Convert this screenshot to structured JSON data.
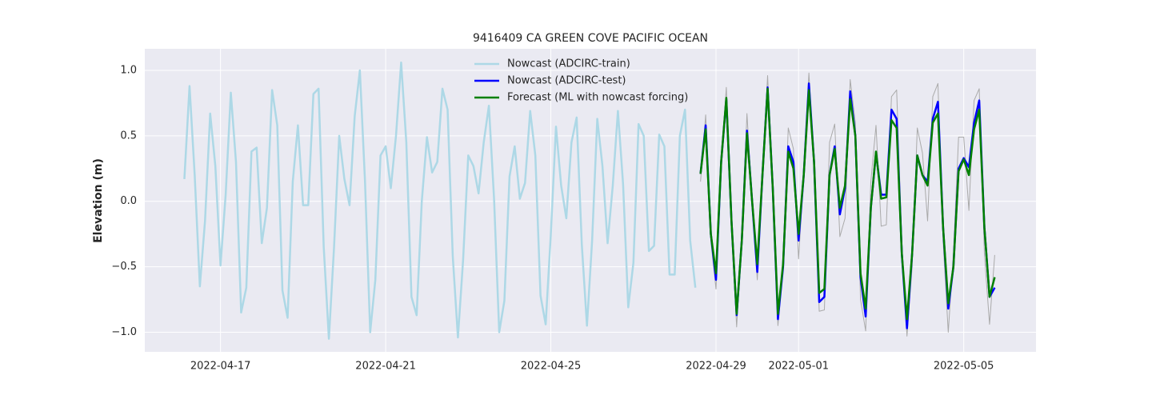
{
  "chart_data": {
    "type": "line",
    "title": "9416409 CA GREEN COVE PACIFIC OCEAN",
    "y_label": "Elevation (m)",
    "grid": true,
    "legend": "upper center",
    "background": "#eaeaf2",
    "xlim": [
      "2022-04-15 04:00",
      "2022-05-06 18:00"
    ],
    "xticks": [
      "2022-04-17",
      "2022-04-21",
      "2022-04-25",
      "2022-04-29",
      "2022-05-01",
      "2022-05-05"
    ],
    "ylim": [
      -1.15,
      1.165
    ],
    "yticks": [
      {
        "value": -1,
        "label": "−1.0"
      },
      {
        "value": -0.5,
        "label": "−0.5"
      },
      {
        "value": 0,
        "label": "0.0"
      },
      0.5,
      {
        "value": 1,
        "label": "1.0"
      }
    ],
    "x": [
      "2022-04-16 03:00",
      "2022-04-16 06:00",
      "2022-04-16 09:00",
      "2022-04-16 12:00",
      "2022-04-16 15:00",
      "2022-04-16 18:00",
      "2022-04-16 21:00",
      "2022-04-17 00:00",
      "2022-04-17 03:00",
      "2022-04-17 06:00",
      "2022-04-17 09:00",
      "2022-04-17 12:00",
      "2022-04-17 15:00",
      "2022-04-17 18:00",
      "2022-04-17 21:00",
      "2022-04-18 00:00",
      "2022-04-18 03:00",
      "2022-04-18 06:00",
      "2022-04-18 09:00",
      "2022-04-18 12:00",
      "2022-04-18 15:00",
      "2022-04-18 18:00",
      "2022-04-18 21:00",
      "2022-04-19 00:00",
      "2022-04-19 03:00",
      "2022-04-19 06:00",
      "2022-04-19 09:00",
      "2022-04-19 12:00",
      "2022-04-19 15:00",
      "2022-04-19 18:00",
      "2022-04-19 21:00",
      "2022-04-20 00:00",
      "2022-04-20 03:00",
      "2022-04-20 06:00",
      "2022-04-20 09:00",
      "2022-04-20 12:00",
      "2022-04-20 15:00",
      "2022-04-20 18:00",
      "2022-04-20 21:00",
      "2022-04-21 00:00",
      "2022-04-21 03:00",
      "2022-04-21 06:00",
      "2022-04-21 09:00",
      "2022-04-21 12:00",
      "2022-04-21 15:00",
      "2022-04-21 18:00",
      "2022-04-21 21:00",
      "2022-04-22 00:00",
      "2022-04-22 03:00",
      "2022-04-22 06:00",
      "2022-04-22 09:00",
      "2022-04-22 12:00",
      "2022-04-22 15:00",
      "2022-04-22 18:00",
      "2022-04-22 21:00",
      "2022-04-23 00:00",
      "2022-04-23 03:00",
      "2022-04-23 06:00",
      "2022-04-23 09:00",
      "2022-04-23 12:00",
      "2022-04-23 15:00",
      "2022-04-23 18:00",
      "2022-04-23 21:00",
      "2022-04-24 00:00",
      "2022-04-24 03:00",
      "2022-04-24 06:00",
      "2022-04-24 09:00",
      "2022-04-24 12:00",
      "2022-04-24 15:00",
      "2022-04-24 18:00",
      "2022-04-24 21:00",
      "2022-04-25 00:00",
      "2022-04-25 03:00",
      "2022-04-25 06:00",
      "2022-04-25 09:00",
      "2022-04-25 12:00",
      "2022-04-25 15:00",
      "2022-04-25 18:00",
      "2022-04-25 21:00",
      "2022-04-26 00:00",
      "2022-04-26 03:00",
      "2022-04-26 06:00",
      "2022-04-26 09:00",
      "2022-04-26 12:00",
      "2022-04-26 15:00",
      "2022-04-26 18:00",
      "2022-04-26 21:00",
      "2022-04-27 00:00",
      "2022-04-27 03:00",
      "2022-04-27 06:00",
      "2022-04-27 09:00",
      "2022-04-27 12:00",
      "2022-04-27 15:00",
      "2022-04-27 18:00",
      "2022-04-27 21:00",
      "2022-04-28 00:00",
      "2022-04-28 03:00",
      "2022-04-28 06:00",
      "2022-04-28 09:00",
      "2022-04-28 12:00",
      "2022-04-28 15:00",
      "2022-04-28 18:00",
      "2022-04-28 21:00",
      "2022-04-29 00:00",
      "2022-04-29 03:00",
      "2022-04-29 06:00",
      "2022-04-29 09:00",
      "2022-04-29 12:00",
      "2022-04-29 15:00",
      "2022-04-29 18:00",
      "2022-04-29 21:00",
      "2022-04-30 00:00",
      "2022-04-30 03:00",
      "2022-04-30 06:00",
      "2022-04-30 09:00",
      "2022-04-30 12:00",
      "2022-04-30 15:00",
      "2022-04-30 18:00",
      "2022-04-30 21:00",
      "2022-05-01 00:00",
      "2022-05-01 03:00",
      "2022-05-01 06:00",
      "2022-05-01 09:00",
      "2022-05-01 12:00",
      "2022-05-01 15:00",
      "2022-05-01 18:00",
      "2022-05-01 21:00",
      "2022-05-02 00:00",
      "2022-05-02 03:00",
      "2022-05-02 06:00",
      "2022-05-02 09:00",
      "2022-05-02 12:00",
      "2022-05-02 15:00",
      "2022-05-02 18:00",
      "2022-05-02 21:00",
      "2022-05-03 00:00",
      "2022-05-03 03:00",
      "2022-05-03 06:00",
      "2022-05-03 09:00",
      "2022-05-03 12:00",
      "2022-05-03 15:00",
      "2022-05-03 18:00",
      "2022-05-03 21:00",
      "2022-05-04 00:00",
      "2022-05-04 03:00",
      "2022-05-04 06:00",
      "2022-05-04 09:00",
      "2022-05-04 12:00",
      "2022-05-04 15:00",
      "2022-05-04 18:00",
      "2022-05-04 21:00",
      "2022-05-05 00:00",
      "2022-05-05 03:00",
      "2022-05-05 06:00",
      "2022-05-05 09:00",
      "2022-05-05 12:00",
      "2022-05-05 15:00",
      "2022-05-05 18:00"
    ],
    "series": [
      {
        "name": "Nowcast (ADCIRC-train)",
        "color": "#add8e6",
        "width": 2.5,
        "values": [
          0.17,
          0.88,
          0.2,
          -0.65,
          -0.15,
          0.67,
          0.27,
          -0.49,
          0.05,
          0.83,
          0.3,
          -0.85,
          -0.66,
          0.38,
          0.41,
          -0.32,
          -0.05,
          0.85,
          0.58,
          -0.68,
          -0.89,
          0.15,
          0.58,
          -0.03,
          -0.03,
          0.82,
          0.86,
          -0.35,
          -1.05,
          -0.35,
          0.5,
          0.17,
          -0.03,
          0.65,
          1.0,
          0.15,
          -1.0,
          -0.6,
          0.35,
          0.42,
          0.1,
          0.5,
          1.06,
          0.45,
          -0.73,
          -0.87,
          0.0,
          0.49,
          0.22,
          0.3,
          0.86,
          0.7,
          -0.42,
          -1.04,
          -0.45,
          0.35,
          0.27,
          0.06,
          0.45,
          0.73,
          0.02,
          -1.0,
          -0.76,
          0.19,
          0.42,
          0.02,
          0.14,
          0.69,
          0.35,
          -0.72,
          -0.94,
          -0.25,
          0.57,
          0.12,
          -0.13,
          0.45,
          0.64,
          -0.33,
          -0.95,
          -0.3,
          0.63,
          0.27,
          -0.32,
          0.12,
          0.69,
          0.13,
          -0.81,
          -0.47,
          0.59,
          0.5,
          -0.38,
          -0.34,
          0.51,
          0.42,
          -0.56,
          -0.56,
          0.5,
          0.7,
          -0.3,
          -0.66,
          null,
          null,
          null,
          null,
          null,
          null,
          null,
          null,
          null,
          null,
          null,
          null,
          null,
          null,
          null,
          null,
          null,
          null,
          null,
          null,
          null,
          null,
          null,
          null,
          null,
          null,
          null,
          null,
          null,
          null,
          null,
          null,
          null,
          null,
          null,
          null,
          null,
          null,
          null,
          null,
          null,
          null,
          null,
          null,
          null,
          null,
          null,
          null,
          null,
          null,
          null,
          null,
          null,
          null,
          null,
          null,
          null,
          null
        ]
      },
      {
        "color": "#aaaaaa",
        "width": 1,
        "values": [
          null,
          null,
          null,
          null,
          null,
          null,
          null,
          null,
          null,
          null,
          null,
          null,
          null,
          null,
          null,
          null,
          null,
          null,
          null,
          null,
          null,
          null,
          null,
          null,
          null,
          null,
          null,
          null,
          null,
          null,
          null,
          null,
          null,
          null,
          null,
          null,
          null,
          null,
          null,
          null,
          null,
          null,
          null,
          null,
          null,
          null,
          null,
          null,
          null,
          null,
          null,
          null,
          null,
          null,
          null,
          null,
          null,
          null,
          null,
          null,
          null,
          null,
          null,
          null,
          null,
          null,
          null,
          null,
          null,
          null,
          null,
          null,
          null,
          null,
          null,
          null,
          null,
          null,
          null,
          null,
          null,
          null,
          null,
          null,
          null,
          null,
          null,
          null,
          null,
          null,
          null,
          null,
          null,
          null,
          null,
          null,
          null,
          null,
          null,
          null,
          0.15,
          0.66,
          -0.3,
          -0.67,
          0.3,
          0.87,
          -0.2,
          -0.96,
          -0.3,
          0.67,
          0.0,
          -0.6,
          0.2,
          0.96,
          0.1,
          -0.95,
          -0.5,
          0.56,
          0.4,
          -0.44,
          0.2,
          0.98,
          0.3,
          -0.84,
          -0.83,
          0.45,
          0.59,
          -0.27,
          -0.13,
          0.93,
          0.6,
          -0.75,
          -0.99,
          0.15,
          0.58,
          -0.19,
          -0.18,
          0.8,
          0.85,
          -0.3,
          -1.03,
          -0.5,
          0.56,
          0.37,
          -0.15,
          0.8,
          0.9,
          -0.3,
          -1.0,
          -0.4,
          0.49,
          0.49,
          -0.07,
          0.77,
          0.86,
          -0.4,
          -0.94,
          -0.41
        ]
      },
      {
        "name": "Nowcast (ADCIRC-test)",
        "color": "#0000ff",
        "width": 2.5,
        "values": [
          null,
          null,
          null,
          null,
          null,
          null,
          null,
          null,
          null,
          null,
          null,
          null,
          null,
          null,
          null,
          null,
          null,
          null,
          null,
          null,
          null,
          null,
          null,
          null,
          null,
          null,
          null,
          null,
          null,
          null,
          null,
          null,
          null,
          null,
          null,
          null,
          null,
          null,
          null,
          null,
          null,
          null,
          null,
          null,
          null,
          null,
          null,
          null,
          null,
          null,
          null,
          null,
          null,
          null,
          null,
          null,
          null,
          null,
          null,
          null,
          null,
          null,
          null,
          null,
          null,
          null,
          null,
          null,
          null,
          null,
          null,
          null,
          null,
          null,
          null,
          null,
          null,
          null,
          null,
          null,
          null,
          null,
          null,
          null,
          null,
          null,
          null,
          null,
          null,
          null,
          null,
          null,
          null,
          null,
          null,
          null,
          null,
          null,
          null,
          null,
          0.21,
          0.58,
          -0.25,
          -0.6,
          0.3,
          0.78,
          -0.15,
          -0.87,
          -0.3,
          0.54,
          0.0,
          -0.54,
          0.2,
          0.87,
          0.1,
          -0.9,
          -0.5,
          0.42,
          0.3,
          -0.3,
          0.2,
          0.9,
          0.3,
          -0.77,
          -0.73,
          0.2,
          0.42,
          -0.1,
          0.1,
          0.84,
          0.5,
          -0.58,
          -0.88,
          -0.05,
          0.37,
          0.05,
          0.05,
          0.7,
          0.63,
          -0.4,
          -0.97,
          -0.4,
          0.35,
          0.2,
          0.15,
          0.63,
          0.76,
          -0.2,
          -0.82,
          -0.5,
          0.25,
          0.33,
          0.26,
          0.6,
          0.77,
          -0.2,
          -0.73,
          -0.66
        ]
      },
      {
        "name": "Forecast (ML with nowcast forcing)",
        "color": "#008000",
        "width": 2.5,
        "values": [
          null,
          null,
          null,
          null,
          null,
          null,
          null,
          null,
          null,
          null,
          null,
          null,
          null,
          null,
          null,
          null,
          null,
          null,
          null,
          null,
          null,
          null,
          null,
          null,
          null,
          null,
          null,
          null,
          null,
          null,
          null,
          null,
          null,
          null,
          null,
          null,
          null,
          null,
          null,
          null,
          null,
          null,
          null,
          null,
          null,
          null,
          null,
          null,
          null,
          null,
          null,
          null,
          null,
          null,
          null,
          null,
          null,
          null,
          null,
          null,
          null,
          null,
          null,
          null,
          null,
          null,
          null,
          null,
          null,
          null,
          null,
          null,
          null,
          null,
          null,
          null,
          null,
          null,
          null,
          null,
          null,
          null,
          null,
          null,
          null,
          null,
          null,
          null,
          null,
          null,
          null,
          null,
          null,
          null,
          null,
          null,
          null,
          null,
          null,
          null,
          0.21,
          0.55,
          -0.25,
          -0.55,
          0.3,
          0.79,
          -0.15,
          -0.86,
          -0.3,
          0.52,
          0.0,
          -0.48,
          0.2,
          0.86,
          0.1,
          -0.86,
          -0.48,
          0.38,
          0.25,
          -0.25,
          0.2,
          0.85,
          0.3,
          -0.7,
          -0.67,
          0.2,
          0.4,
          -0.05,
          0.12,
          0.78,
          0.5,
          -0.55,
          -0.82,
          -0.05,
          0.38,
          0.02,
          0.03,
          0.62,
          0.56,
          -0.4,
          -0.9,
          -0.4,
          0.35,
          0.2,
          0.12,
          0.6,
          0.67,
          -0.2,
          -0.78,
          -0.5,
          0.23,
          0.32,
          0.2,
          0.55,
          0.7,
          -0.2,
          -0.73,
          -0.58
        ]
      }
    ]
  }
}
